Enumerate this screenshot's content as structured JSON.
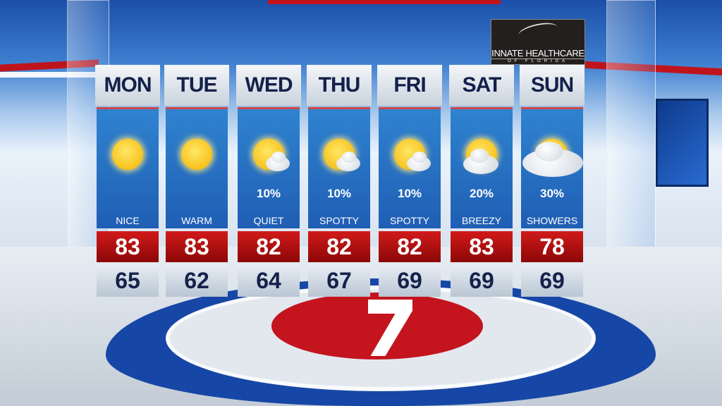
{
  "sponsor": {
    "line1": "INNATE HEALTHCARE",
    "line2": "OF FLORIDA"
  },
  "days": [
    {
      "day": "MON",
      "icon": "sunny",
      "pop": "",
      "cond": "NICE",
      "hi": "83",
      "lo": "65"
    },
    {
      "day": "TUE",
      "icon": "sunny",
      "pop": "",
      "cond": "WARM",
      "hi": "83",
      "lo": "62"
    },
    {
      "day": "WED",
      "icon": "sun-small-cloud",
      "pop": "10%",
      "cond": "QUIET",
      "hi": "82",
      "lo": "64"
    },
    {
      "day": "THU",
      "icon": "sun-small-cloud",
      "pop": "10%",
      "cond": "SPOTTY",
      "hi": "82",
      "lo": "67"
    },
    {
      "day": "FRI",
      "icon": "sun-small-cloud",
      "pop": "10%",
      "cond": "SPOTTY",
      "hi": "82",
      "lo": "69"
    },
    {
      "day": "SAT",
      "icon": "sun-cloud",
      "pop": "20%",
      "cond": "BREEZY",
      "hi": "83",
      "lo": "69"
    },
    {
      "day": "SUN",
      "icon": "sun-big-cloud-showers",
      "pop": "30%",
      "cond": "SHOWERS",
      "hi": "78",
      "lo": "69"
    }
  ]
}
